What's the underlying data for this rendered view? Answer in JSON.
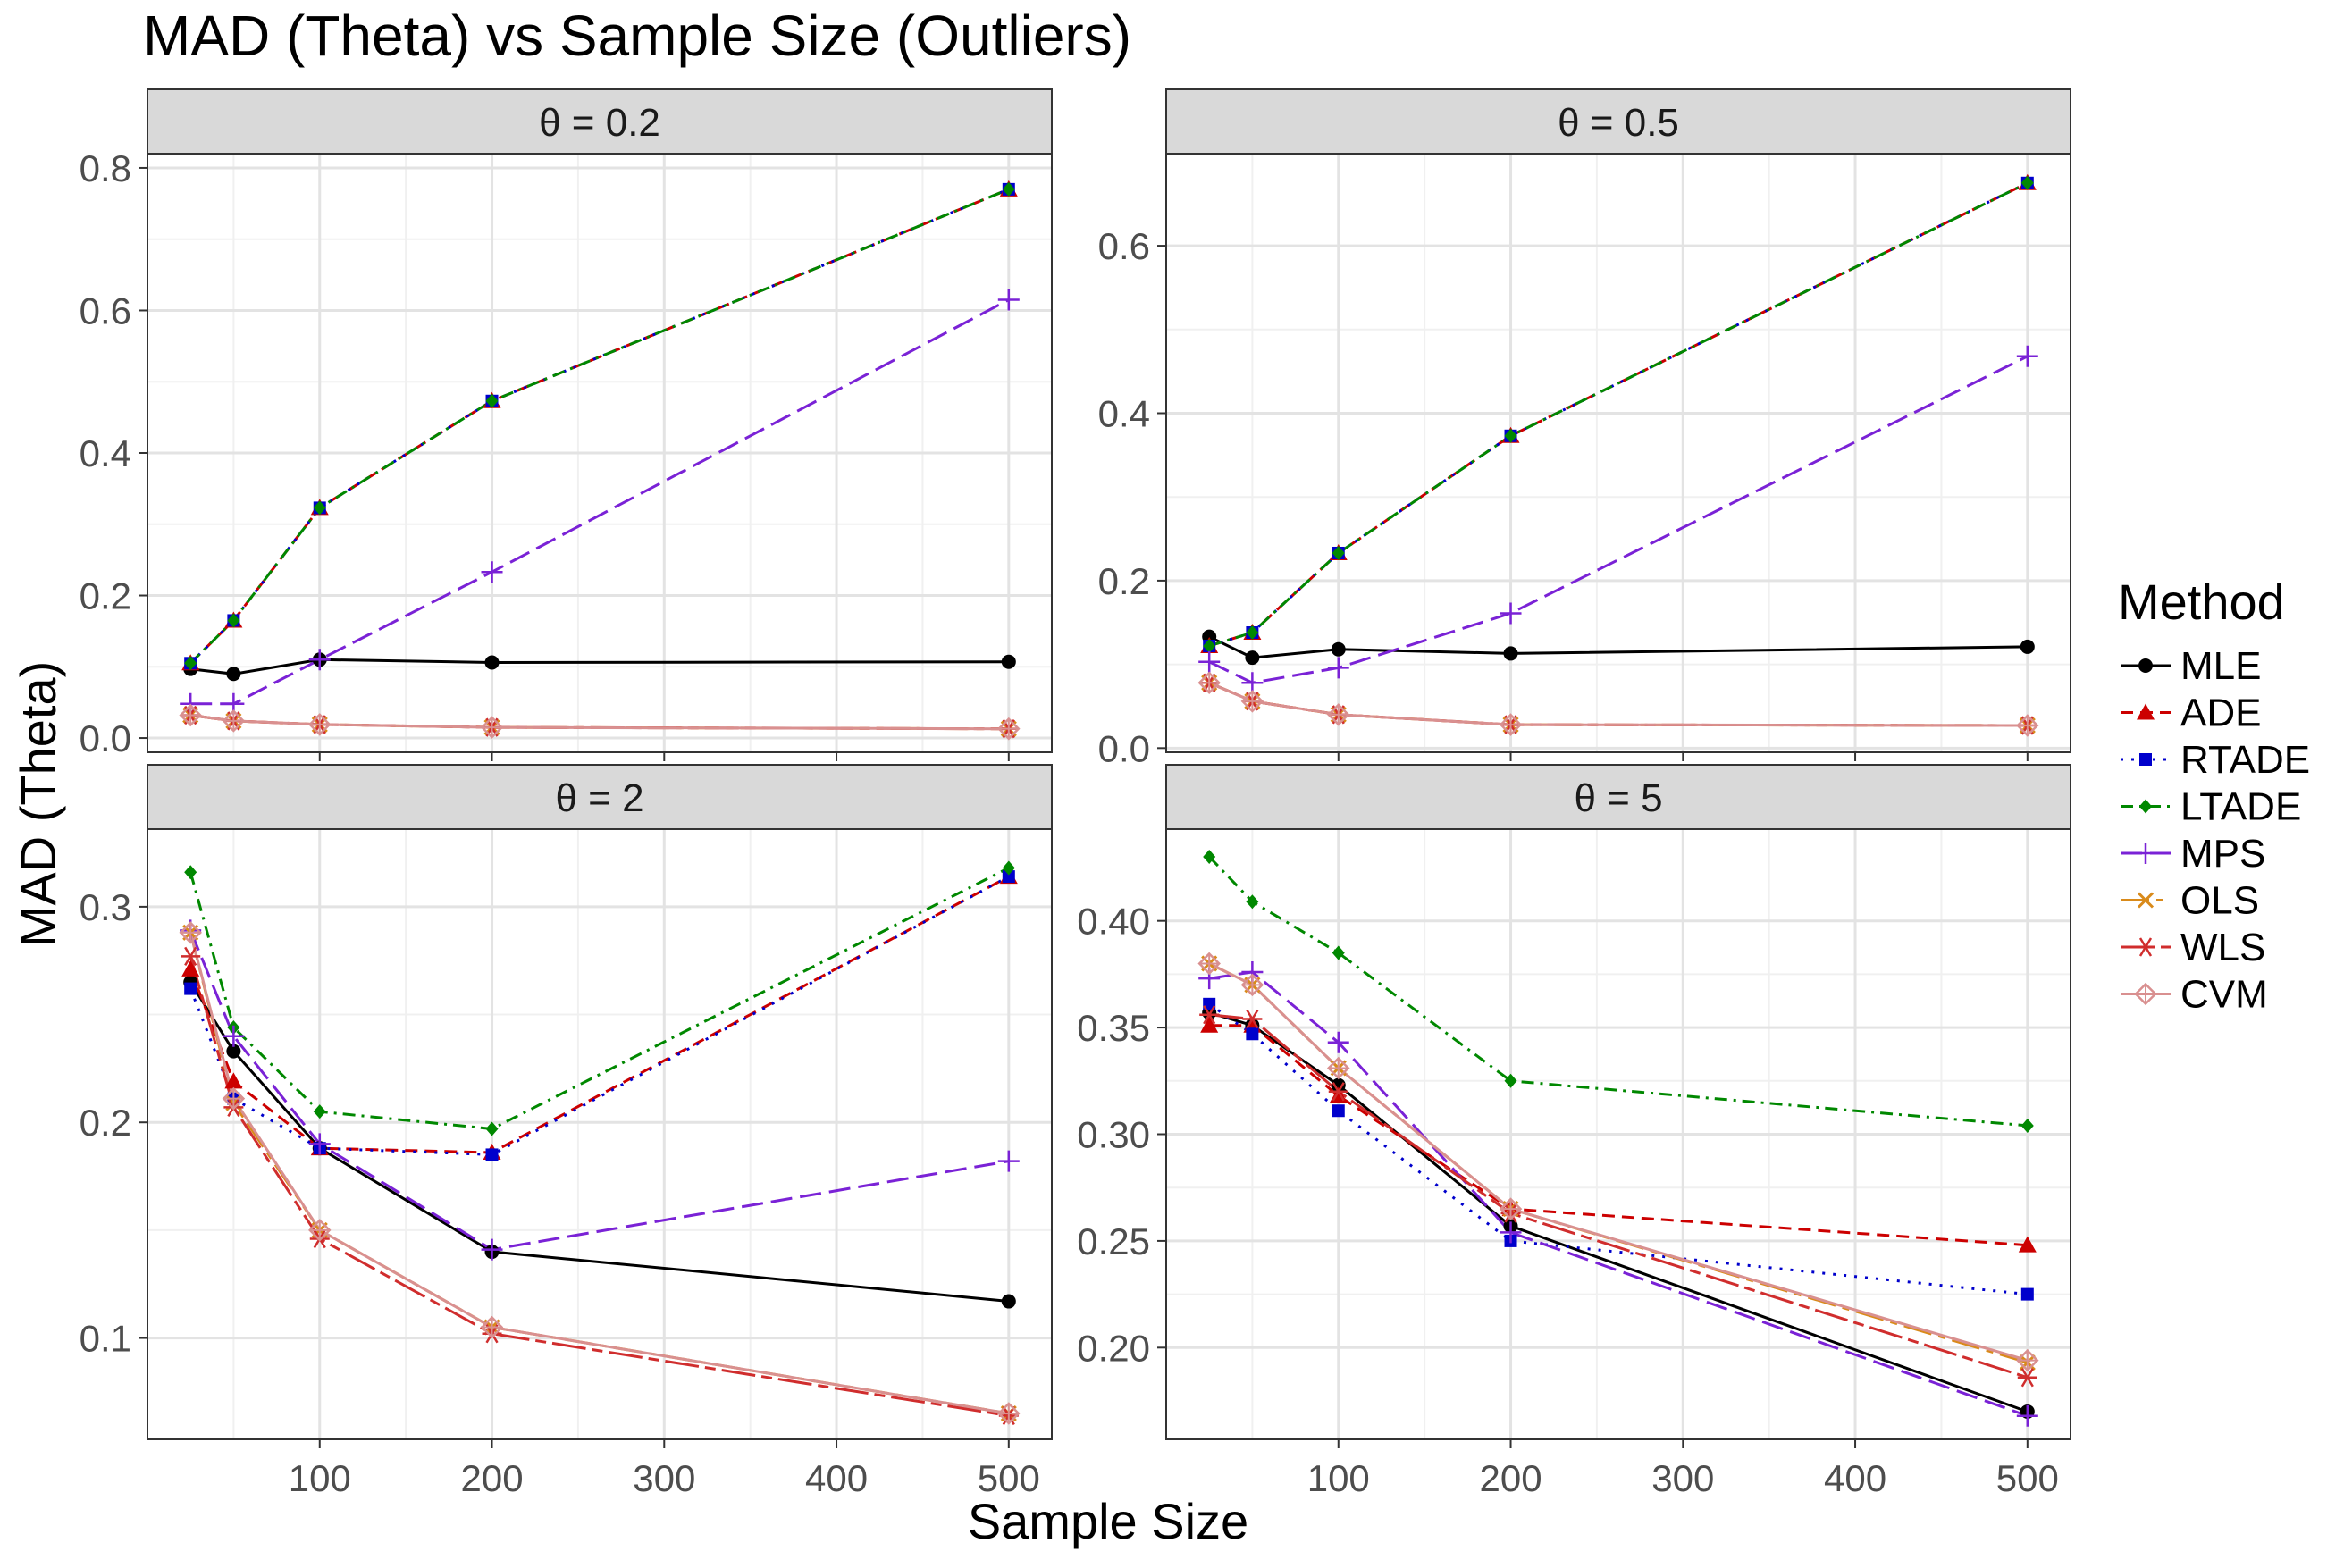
{
  "chart_data": {
    "type": "line",
    "title": "MAD (Theta) vs Sample Size (Outliers)",
    "xlabel": "Sample Size",
    "ylabel": "MAD (Theta)",
    "x": [
      25,
      50,
      100,
      200,
      500
    ],
    "xlim": [
      0,
      525
    ],
    "xticks": [
      100,
      200,
      300,
      400,
      500
    ],
    "grid": true,
    "legend": {
      "title": "Method",
      "placement": "right",
      "entries": [
        "MLE",
        "ADE",
        "RTADE",
        "LTADE",
        "MPS",
        "OLS",
        "WLS",
        "CVM"
      ]
    },
    "styles": {
      "MLE": {
        "color": "#000000",
        "dash": "",
        "marker": "circle"
      },
      "ADE": {
        "color": "#CC0000",
        "dash": "14,8",
        "marker": "triangle"
      },
      "RTADE": {
        "color": "#0000CC",
        "dash": "3,9",
        "marker": "square"
      },
      "LTADE": {
        "color": "#008800",
        "dash": "14,7,3,7",
        "marker": "diamond"
      },
      "MPS": {
        "color": "#7A22D6",
        "dash": "24,9",
        "marker": "plus"
      },
      "OLS": {
        "color": "#D98A1A",
        "dash": "32,8,8,8",
        "marker": "cross"
      },
      "WLS": {
        "color": "#D02D2D",
        "dash": "38,7,12,7",
        "marker": "asterisk"
      },
      "CVM": {
        "color": "#D99090",
        "dash": "",
        "marker": "diamond-open"
      }
    },
    "panels": [
      {
        "strip": "θ = 0.2",
        "ylim": [
          -0.02,
          0.82
        ],
        "yticks": [
          0.0,
          0.2,
          0.4,
          0.6,
          0.8
        ],
        "ytick_labels": [
          "0.0",
          "0.2",
          "0.4",
          "0.6",
          "0.8"
        ],
        "series": [
          {
            "name": "MLE",
            "values": [
              0.097,
              0.09,
              0.11,
              0.106,
              0.107
            ]
          },
          {
            "name": "ADE",
            "values": [
              0.105,
              0.165,
              0.323,
              0.473,
              0.77
            ]
          },
          {
            "name": "RTADE",
            "values": [
              0.105,
              0.165,
              0.323,
              0.473,
              0.77
            ]
          },
          {
            "name": "LTADE",
            "values": [
              0.105,
              0.165,
              0.323,
              0.473,
              0.77
            ]
          },
          {
            "name": "MPS",
            "values": [
              0.048,
              0.048,
              0.11,
              0.233,
              0.615
            ]
          },
          {
            "name": "OLS",
            "values": [
              0.032,
              0.024,
              0.019,
              0.015,
              0.013
            ]
          },
          {
            "name": "WLS",
            "values": [
              0.032,
              0.024,
              0.019,
              0.015,
              0.013
            ]
          },
          {
            "name": "CVM",
            "values": [
              0.032,
              0.024,
              0.019,
              0.015,
              0.013
            ]
          }
        ]
      },
      {
        "strip": "θ = 0.5",
        "ylim": [
          -0.005,
          0.71
        ],
        "yticks": [
          0.0,
          0.2,
          0.4,
          0.6
        ],
        "ytick_labels": [
          "0.0",
          "0.2",
          "0.4",
          "0.6"
        ],
        "series": [
          {
            "name": "MLE",
            "values": [
              0.133,
              0.108,
              0.118,
              0.113,
              0.121
            ]
          },
          {
            "name": "ADE",
            "values": [
              0.122,
              0.138,
              0.233,
              0.373,
              0.675
            ]
          },
          {
            "name": "RTADE",
            "values": [
              0.122,
              0.138,
              0.233,
              0.373,
              0.675
            ]
          },
          {
            "name": "LTADE",
            "values": [
              0.122,
              0.138,
              0.233,
              0.373,
              0.675
            ]
          },
          {
            "name": "MPS",
            "values": [
              0.103,
              0.078,
              0.096,
              0.161,
              0.468
            ]
          },
          {
            "name": "OLS",
            "values": [
              0.078,
              0.056,
              0.04,
              0.028,
              0.027
            ]
          },
          {
            "name": "WLS",
            "values": [
              0.078,
              0.056,
              0.04,
              0.028,
              0.027
            ]
          },
          {
            "name": "CVM",
            "values": [
              0.078,
              0.056,
              0.04,
              0.028,
              0.027
            ]
          }
        ]
      },
      {
        "strip": "θ = 2",
        "ylim": [
          0.053,
          0.336
        ],
        "yticks": [
          0.1,
          0.2,
          0.3
        ],
        "ytick_labels": [
          "0.1",
          "0.2",
          "0.3"
        ],
        "series": [
          {
            "name": "MLE",
            "values": [
              0.265,
              0.233,
              0.188,
              0.14,
              0.117
            ]
          },
          {
            "name": "ADE",
            "values": [
              0.271,
              0.219,
              0.188,
              0.186,
              0.314
            ]
          },
          {
            "name": "RTADE",
            "values": [
              0.262,
              0.211,
              0.188,
              0.185,
              0.314
            ]
          },
          {
            "name": "LTADE",
            "values": [
              0.316,
              0.244,
              0.205,
              0.197,
              0.318
            ]
          },
          {
            "name": "MPS",
            "values": [
              0.289,
              0.24,
              0.19,
              0.141,
              0.182
            ]
          },
          {
            "name": "OLS",
            "values": [
              0.288,
              0.209,
              0.15,
              0.105,
              0.065
            ]
          },
          {
            "name": "WLS",
            "values": [
              0.277,
              0.207,
              0.146,
              0.102,
              0.064
            ]
          },
          {
            "name": "CVM",
            "values": [
              0.288,
              0.211,
              0.15,
              0.105,
              0.065
            ]
          }
        ]
      },
      {
        "strip": "θ = 5",
        "ylim": [
          0.157,
          0.443
        ],
        "yticks": [
          0.2,
          0.25,
          0.3,
          0.35,
          0.4
        ],
        "ytick_labels": [
          "0.20",
          "0.25",
          "0.30",
          "0.35",
          "0.40"
        ],
        "series": [
          {
            "name": "MLE",
            "values": [
              0.357,
              0.351,
              0.323,
              0.257,
              0.17
            ]
          },
          {
            "name": "ADE",
            "values": [
              0.351,
              0.351,
              0.318,
              0.265,
              0.248
            ]
          },
          {
            "name": "RTADE",
            "values": [
              0.361,
              0.347,
              0.311,
              0.25,
              0.225
            ]
          },
          {
            "name": "LTADE",
            "values": [
              0.43,
              0.409,
              0.385,
              0.325,
              0.304
            ]
          },
          {
            "name": "MPS",
            "values": [
              0.373,
              0.376,
              0.343,
              0.254,
              0.168
            ]
          },
          {
            "name": "OLS",
            "values": [
              0.38,
              0.37,
              0.331,
              0.265,
              0.193
            ]
          },
          {
            "name": "WLS",
            "values": [
              0.356,
              0.354,
              0.32,
              0.263,
              0.186
            ]
          },
          {
            "name": "CVM",
            "values": [
              0.38,
              0.37,
              0.331,
              0.265,
              0.194
            ]
          }
        ]
      }
    ]
  }
}
